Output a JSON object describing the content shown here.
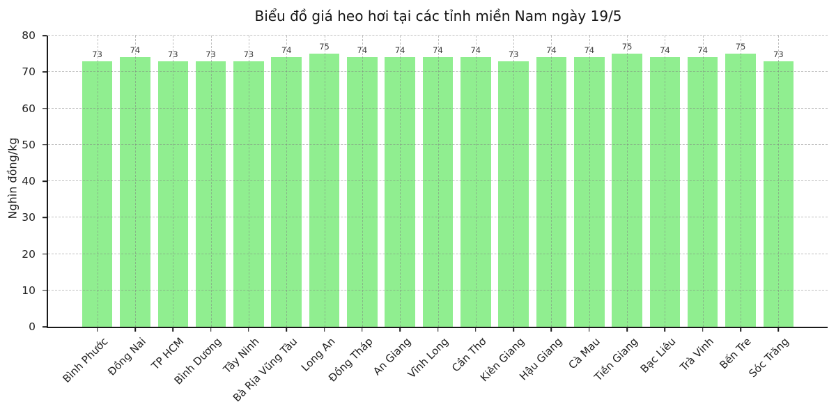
{
  "chart_data": {
    "type": "bar",
    "title": "Biểu đồ giá heo hơi tại các tỉnh miền Nam ngày 19/5",
    "ylabel": "Nghìn đồng/kg",
    "xlabel": "",
    "ylim": [
      0,
      80
    ],
    "yticks": [
      0,
      10,
      20,
      30,
      40,
      50,
      60,
      70,
      80
    ],
    "grid": true,
    "legend": false,
    "bar_color": "#90EE90",
    "grid_color": "#7d7d7d",
    "axis_color": "#1a1a1a",
    "text_color": "#1f1f1f",
    "value_label_color": "#3a3a3a",
    "categories": [
      "Bình Phước",
      "Đồng Nai",
      "TP HCM",
      "Bình Dương",
      "Tây Ninh",
      "Bà Rịa Vũng Tàu",
      "Long An",
      "Đồng Tháp",
      "An Giang",
      "Vĩnh Long",
      "Cần Thơ",
      "Kiên Giang",
      "Hậu Giang",
      "Cà Mau",
      "Tiền Giang",
      "Bạc Liêu",
      "Trà Vinh",
      "Bến Tre",
      "Sóc Trăng"
    ],
    "values": [
      73,
      74,
      73,
      73,
      73,
      74,
      75,
      74,
      74,
      74,
      74,
      73,
      74,
      74,
      75,
      74,
      74,
      75,
      73
    ]
  }
}
